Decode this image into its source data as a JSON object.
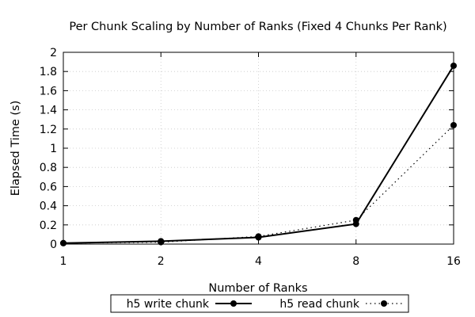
{
  "chart_data": {
    "type": "line",
    "title": "Per Chunk Scaling by Number of Ranks (Fixed 4 Chunks Per Rank)",
    "xlabel": "Number of Ranks",
    "ylabel": "Elapsed Time (s)",
    "x": [
      1,
      2,
      4,
      8,
      16
    ],
    "x_scale": "log2",
    "x_tick_labels": [
      "1",
      "2",
      "4",
      "8",
      "16"
    ],
    "ylim": [
      0,
      2
    ],
    "y_tick_labels": [
      "0",
      "0.2",
      "0.4",
      "0.6",
      "0.8",
      "1",
      "1.2",
      "1.4",
      "1.6",
      "1.8",
      "2"
    ],
    "grid": true,
    "legend_position": "bottom",
    "series": [
      {
        "name": "h5 write chunk",
        "values": [
          0.01,
          0.03,
          0.07,
          0.21,
          1.86
        ],
        "line_style": "solid",
        "marker": "circle",
        "color": "#000000"
      },
      {
        "name": "h5 read chunk",
        "values": [
          0.01,
          0.02,
          0.08,
          0.25,
          1.24
        ],
        "line_style": "dotted",
        "marker": "circle",
        "color": "#000000"
      }
    ]
  }
}
